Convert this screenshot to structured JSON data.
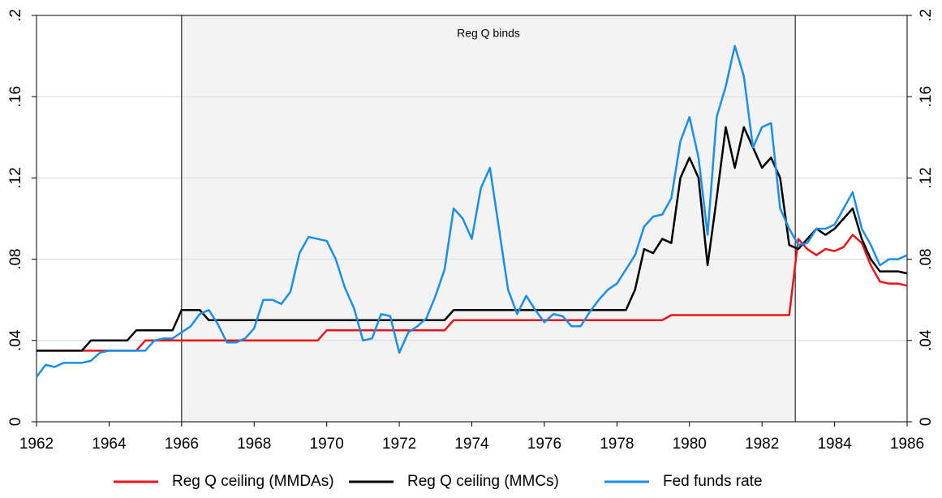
{
  "chart_data": {
    "type": "line",
    "annotation": "Reg Q binds",
    "shade": [
      1966,
      1982.917
    ],
    "x": [
      1962,
      1962.25,
      1962.5,
      1962.75,
      1963,
      1963.25,
      1963.5,
      1963.75,
      1964,
      1964.25,
      1964.5,
      1964.75,
      1965,
      1965.25,
      1965.5,
      1965.75,
      1966,
      1966.25,
      1966.5,
      1966.75,
      1967,
      1967.25,
      1967.5,
      1967.75,
      1968,
      1968.25,
      1968.5,
      1968.75,
      1969,
      1969.25,
      1969.5,
      1969.75,
      1970,
      1970.25,
      1970.5,
      1970.75,
      1971,
      1971.25,
      1971.5,
      1971.75,
      1972,
      1972.25,
      1972.5,
      1972.75,
      1973,
      1973.25,
      1973.5,
      1973.75,
      1974,
      1974.25,
      1974.5,
      1974.75,
      1975,
      1975.25,
      1975.5,
      1975.75,
      1976,
      1976.25,
      1976.5,
      1976.75,
      1977,
      1977.25,
      1977.5,
      1977.75,
      1978,
      1978.25,
      1978.5,
      1978.75,
      1979,
      1979.25,
      1979.5,
      1979.75,
      1980,
      1980.25,
      1980.5,
      1980.75,
      1981,
      1981.25,
      1981.5,
      1981.75,
      1982,
      1982.25,
      1982.5,
      1982.75,
      1983,
      1983.25,
      1983.5,
      1983.75,
      1984,
      1984.25,
      1984.5,
      1984.75,
      1985,
      1985.25,
      1985.5,
      1985.75,
      1986
    ],
    "series": [
      {
        "name": "Reg Q ceiling (MMDAs)",
        "color": "#e8141b",
        "values": [
          0.035,
          0.035,
          0.035,
          0.035,
          0.035,
          0.035,
          0.035,
          0.035,
          0.035,
          0.035,
          0.035,
          0.035,
          0.04,
          0.04,
          0.04,
          0.04,
          0.04,
          0.04,
          0.04,
          0.04,
          0.04,
          0.04,
          0.04,
          0.04,
          0.04,
          0.04,
          0.04,
          0.04,
          0.04,
          0.04,
          0.04,
          0.04,
          0.045,
          0.045,
          0.045,
          0.045,
          0.045,
          0.045,
          0.045,
          0.045,
          0.045,
          0.045,
          0.045,
          0.045,
          0.045,
          0.045,
          0.05,
          0.05,
          0.05,
          0.05,
          0.05,
          0.05,
          0.05,
          0.05,
          0.05,
          0.05,
          0.05,
          0.05,
          0.05,
          0.05,
          0.05,
          0.05,
          0.05,
          0.05,
          0.05,
          0.05,
          0.05,
          0.05,
          0.05,
          0.05,
          0.0525,
          0.0525,
          0.0525,
          0.0525,
          0.0525,
          0.0525,
          0.0525,
          0.0525,
          0.0525,
          0.0525,
          0.0525,
          0.0525,
          0.0525,
          0.0525,
          0.09,
          0.085,
          0.082,
          0.085,
          0.084,
          0.086,
          0.092,
          0.088,
          0.077,
          0.069,
          0.068,
          0.068,
          0.067
        ]
      },
      {
        "name": "Reg Q ceiling (MMCs)",
        "color": "#000000",
        "values": [
          0.035,
          0.035,
          0.035,
          0.035,
          0.035,
          0.035,
          0.04,
          0.04,
          0.04,
          0.04,
          0.04,
          0.045,
          0.045,
          0.045,
          0.045,
          0.045,
          0.055,
          0.055,
          0.055,
          0.05,
          0.05,
          0.05,
          0.05,
          0.05,
          0.05,
          0.05,
          0.05,
          0.05,
          0.05,
          0.05,
          0.05,
          0.05,
          0.05,
          0.05,
          0.05,
          0.05,
          0.05,
          0.05,
          0.05,
          0.05,
          0.05,
          0.05,
          0.05,
          0.05,
          0.05,
          0.05,
          0.055,
          0.055,
          0.055,
          0.055,
          0.055,
          0.055,
          0.055,
          0.055,
          0.055,
          0.055,
          0.055,
          0.055,
          0.055,
          0.055,
          0.055,
          0.055,
          0.055,
          0.055,
          0.055,
          0.055,
          0.065,
          0.085,
          0.083,
          0.09,
          0.088,
          0.12,
          0.13,
          0.12,
          0.077,
          0.11,
          0.145,
          0.125,
          0.145,
          0.135,
          0.125,
          0.13,
          0.12,
          0.087,
          0.085,
          0.09,
          0.095,
          0.092,
          0.095,
          0.1,
          0.105,
          0.09,
          0.08,
          0.074,
          0.074,
          0.074,
          0.073
        ]
      },
      {
        "name": "Fed funds rate",
        "color": "#1a8fe8",
        "values": [
          0.022,
          0.028,
          0.027,
          0.029,
          0.029,
          0.029,
          0.03,
          0.034,
          0.035,
          0.035,
          0.035,
          0.035,
          0.035,
          0.04,
          0.041,
          0.041,
          0.044,
          0.047,
          0.053,
          0.055,
          0.048,
          0.039,
          0.039,
          0.041,
          0.046,
          0.06,
          0.06,
          0.058,
          0.064,
          0.083,
          0.091,
          0.09,
          0.089,
          0.08,
          0.066,
          0.056,
          0.04,
          0.041,
          0.053,
          0.052,
          0.034,
          0.044,
          0.047,
          0.051,
          0.062,
          0.075,
          0.105,
          0.1,
          0.09,
          0.115,
          0.125,
          0.095,
          0.065,
          0.053,
          0.062,
          0.055,
          0.049,
          0.053,
          0.052,
          0.047,
          0.047,
          0.054,
          0.06,
          0.065,
          0.068,
          0.075,
          0.082,
          0.096,
          0.101,
          0.102,
          0.11,
          0.138,
          0.15,
          0.13,
          0.092,
          0.15,
          0.165,
          0.185,
          0.17,
          0.135,
          0.145,
          0.147,
          0.105,
          0.095,
          0.087,
          0.088,
          0.095,
          0.095,
          0.097,
          0.105,
          0.113,
          0.095,
          0.087,
          0.077,
          0.08,
          0.08,
          0.082
        ]
      }
    ],
    "xlim": [
      1962,
      1986
    ],
    "xticks": [
      1962,
      1964,
      1966,
      1968,
      1970,
      1972,
      1974,
      1976,
      1978,
      1980,
      1982,
      1984,
      1986
    ],
    "ylim": [
      0,
      0.2
    ],
    "yticks": [
      0,
      {
        "value": 0.04,
        "label": ".04"
      },
      {
        "value": 0.08,
        "label": ".08"
      },
      {
        "value": 0.12,
        "label": ".12"
      },
      {
        "value": 0.16,
        "label": ".16"
      },
      {
        "value": 0.2,
        "label": ".2"
      }
    ],
    "grid": true
  }
}
